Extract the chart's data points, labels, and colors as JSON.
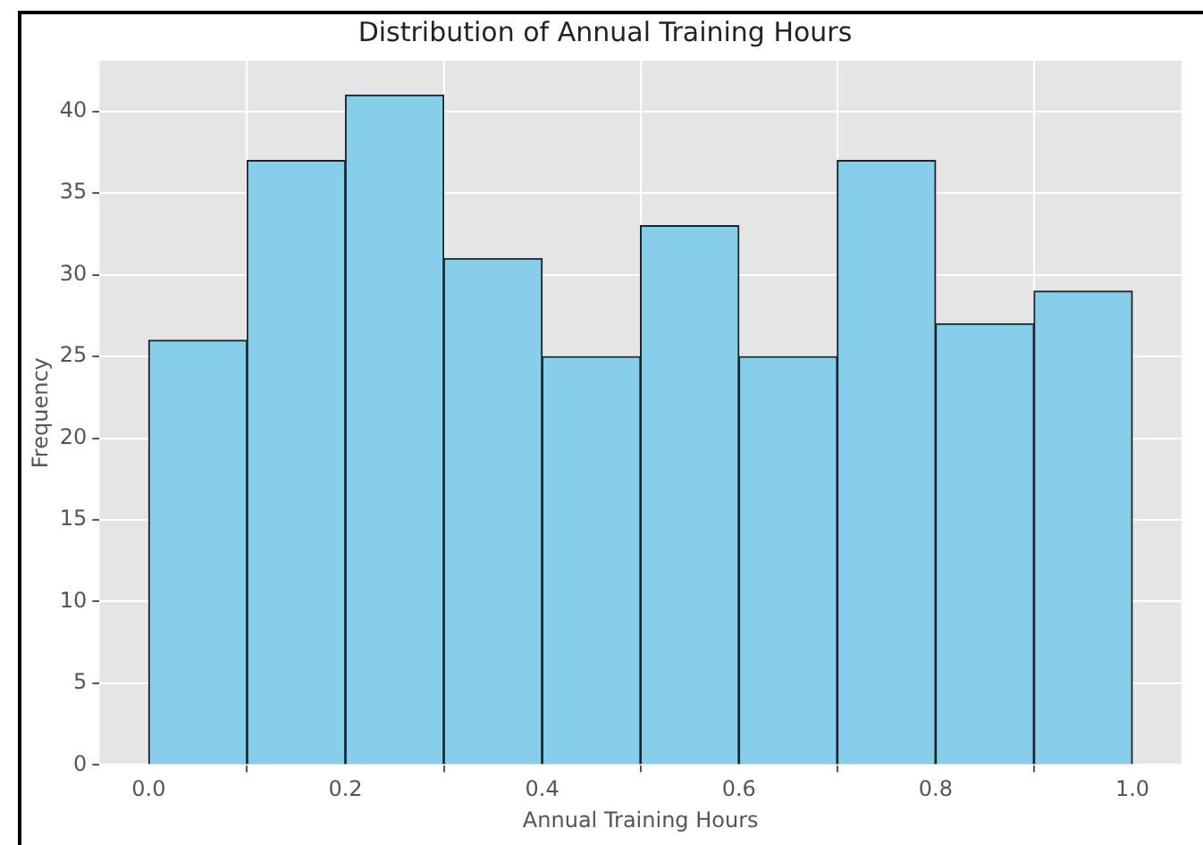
{
  "chart_data": {
    "type": "histogram",
    "title": "Distribution of Annual Training Hours",
    "xlabel": "Annual Training Hours",
    "ylabel": "Frequency",
    "bins": [
      0,
      0.1,
      0.2,
      0.3,
      0.4,
      0.5,
      0.6,
      0.7,
      0.8,
      0.9,
      1.0
    ],
    "values": [
      26,
      37,
      41,
      31,
      25,
      33,
      25,
      37,
      27,
      29
    ],
    "color": "#87ceeb",
    "xlim": [
      -0.05,
      1.05
    ],
    "xticks": [
      {
        "value": 0,
        "label": "0.0"
      },
      0.2,
      0.4,
      0.6,
      0.8,
      {
        "value": 1,
        "label": "1.0"
      }
    ],
    "ylim": [
      0,
      43.1
    ],
    "yticks": [
      0,
      5,
      10,
      15,
      20,
      25,
      30,
      35,
      40
    ],
    "grid": true,
    "legend": false
  }
}
